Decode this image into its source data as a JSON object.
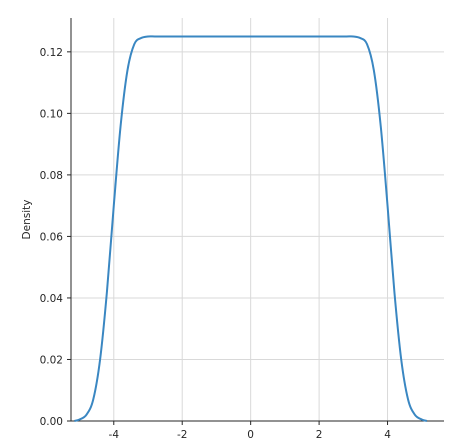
{
  "chart_data": {
    "type": "line",
    "title": "",
    "xlabel": "",
    "ylabel": "Density",
    "xlim": [
      -5.25,
      5.65
    ],
    "ylim": [
      0,
      0.131
    ],
    "grid": true,
    "x_ticks": [
      -4,
      -2,
      0,
      2,
      4
    ],
    "x_tick_labels": [
      "-4",
      "-2",
      "0",
      "2",
      "4"
    ],
    "y_ticks": [
      0,
      0.02,
      0.04,
      0.06,
      0.08,
      0.1,
      0.12
    ],
    "y_tick_labels": [
      "0.00",
      "0.02",
      "0.04",
      "0.06",
      "0.08",
      "0.10",
      "0.12"
    ],
    "line_color": "#3a87c2",
    "series": [
      {
        "x": [
          -5.15,
          -5.0,
          -4.8,
          -4.6,
          -4.4,
          -4.2,
          -4.0,
          -3.8,
          -3.6,
          -3.4,
          -3.2,
          -3.0,
          -2.8,
          -2.5,
          -2.0,
          -1.0,
          0.0,
          1.0,
          2.0,
          2.5,
          2.8,
          3.0,
          3.2,
          3.4,
          3.6,
          3.8,
          4.0,
          4.2,
          4.4,
          4.6,
          4.8,
          5.0,
          5.15
        ],
        "y": [
          0.0,
          0.0005,
          0.002,
          0.007,
          0.02,
          0.042,
          0.07,
          0.096,
          0.114,
          0.1225,
          0.1245,
          0.125,
          0.125,
          0.125,
          0.125,
          0.125,
          0.125,
          0.125,
          0.125,
          0.125,
          0.125,
          0.125,
          0.1245,
          0.1225,
          0.114,
          0.096,
          0.07,
          0.042,
          0.02,
          0.007,
          0.002,
          0.0005,
          0.0
        ]
      }
    ]
  }
}
